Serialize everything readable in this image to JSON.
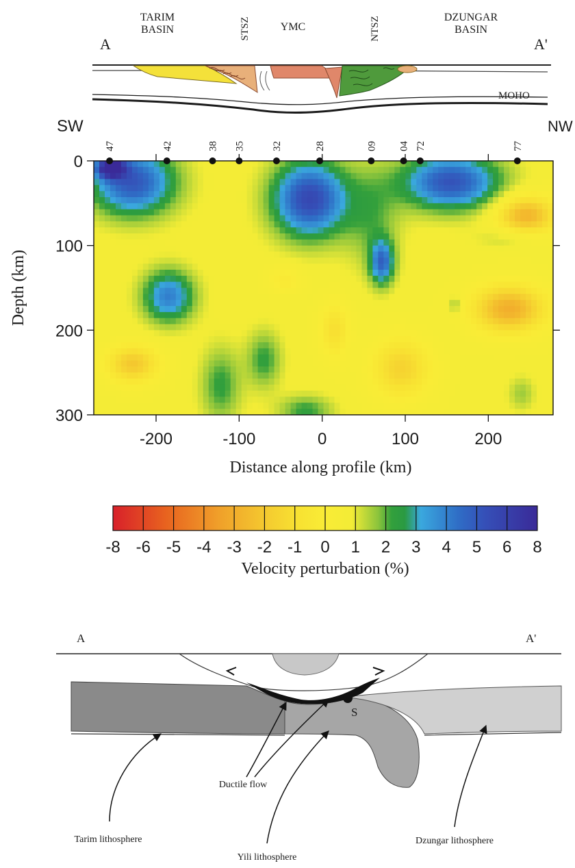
{
  "top_section": {
    "end_left": "A",
    "end_right": "A'",
    "units": [
      {
        "label_lines": [
          "TARIM",
          "BASIN"
        ]
      },
      {
        "label": "STSZ"
      },
      {
        "label": "YMC"
      },
      {
        "label": "NTSZ"
      },
      {
        "label_lines": [
          "DZUNGAR",
          "BASIN"
        ]
      }
    ],
    "moho_label": "MOHO",
    "colors": {
      "tarim": "#f4e13a",
      "ymc": "#e0876a",
      "dzungar": "#4f9a3c",
      "sedimentary": "#e8b07a"
    }
  },
  "tomogram": {
    "dir_left": "SW",
    "dir_right": "NW",
    "stations": [
      {
        "id": "47",
        "x": -256
      },
      {
        "id": "42",
        "x": -187
      },
      {
        "id": "38",
        "x": -132
      },
      {
        "id": "35",
        "x": -100
      },
      {
        "id": "32",
        "x": -55
      },
      {
        "id": "28",
        "x": -3
      },
      {
        "id": "09",
        "x": 59
      },
      {
        "id": "04",
        "x": 98
      },
      {
        "id": "72",
        "x": 118
      },
      {
        "id": "77",
        "x": 235
      }
    ],
    "xlabel": "Distance along profile (km)",
    "ylabel": "Depth (km)",
    "xlim": [
      -275,
      278
    ],
    "ylim": [
      0,
      300
    ],
    "xticks": [
      -200,
      -100,
      0,
      100,
      200
    ],
    "yticks": [
      0,
      100,
      200,
      300
    ],
    "background_anomaly": 0.8,
    "anomalies": [
      {
        "x": -228,
        "y": 25,
        "rx": 62,
        "ry": 48,
        "v": 5.8
      },
      {
        "x": -255,
        "y": 8,
        "rx": 22,
        "ry": 15,
        "v": 7.2
      },
      {
        "x": -15,
        "y": 45,
        "rx": 55,
        "ry": 55,
        "v": 6.4
      },
      {
        "x": 60,
        "y": 65,
        "rx": 42,
        "ry": 75,
        "v": 2.2
      },
      {
        "x": 155,
        "y": 25,
        "rx": 72,
        "ry": 40,
        "v": 5.9
      },
      {
        "x": -185,
        "y": 160,
        "rx": 38,
        "ry": 38,
        "v": 4.6
      },
      {
        "x": 72,
        "y": 120,
        "rx": 18,
        "ry": 32,
        "v": 5.0
      },
      {
        "x": -122,
        "y": 265,
        "rx": 30,
        "ry": 55,
        "v": 2.6
      },
      {
        "x": -70,
        "y": 235,
        "rx": 26,
        "ry": 42,
        "v": 2.6
      },
      {
        "x": -20,
        "y": 295,
        "rx": 40,
        "ry": 22,
        "v": 2.6
      },
      {
        "x": 160,
        "y": 170,
        "rx": 8,
        "ry": 14,
        "v": 2.2
      },
      {
        "x": 230,
        "y": 90,
        "rx": 50,
        "ry": 18,
        "v": 1.8
      },
      {
        "x": 240,
        "y": 275,
        "rx": 20,
        "ry": 25,
        "v": 1.8
      },
      {
        "x": -228,
        "y": 240,
        "rx": 40,
        "ry": 28,
        "v": -2.3
      },
      {
        "x": 245,
        "y": 65,
        "rx": 45,
        "ry": 30,
        "v": -3.2
      },
      {
        "x": 225,
        "y": 175,
        "rx": 55,
        "ry": 35,
        "v": -3.4
      },
      {
        "x": 95,
        "y": 245,
        "rx": 45,
        "ry": 45,
        "v": -1.8
      },
      {
        "x": 15,
        "y": 200,
        "rx": 22,
        "ry": 40,
        "v": -1.2
      },
      {
        "x": -45,
        "y": 140,
        "rx": 25,
        "ry": 20,
        "v": -0.4
      }
    ]
  },
  "colorbar": {
    "title": "Velocity perturbation (%)",
    "ticks": [
      -8,
      -6,
      -5,
      -4,
      -3,
      -2,
      -1,
      0,
      1,
      2,
      3,
      4,
      5,
      6,
      8
    ],
    "stops": [
      {
        "v": -8,
        "color": "#d8202a"
      },
      {
        "v": -6,
        "color": "#e8631f"
      },
      {
        "v": -4,
        "color": "#f0a02a"
      },
      {
        "v": -2,
        "color": "#f5cf30"
      },
      {
        "v": -1,
        "color": "#f8e232"
      },
      {
        "v": 0,
        "color": "#f9ec36"
      },
      {
        "v": 1,
        "color": "#f3ec36"
      },
      {
        "v": 2,
        "color": "#8bc43c"
      },
      {
        "v": 2.5,
        "color": "#33a03c"
      },
      {
        "v": 3,
        "color": "#2a9a42"
      },
      {
        "v": 3.6,
        "color": "#3aa8de"
      },
      {
        "v": 5,
        "color": "#2f6ec6"
      },
      {
        "v": 6,
        "color": "#3550b8"
      },
      {
        "v": 8,
        "color": "#3a2a98"
      }
    ]
  },
  "bottom_section": {
    "end_left": "A",
    "end_right": "A'",
    "marker_label": "S",
    "labels": {
      "ductile_flow": "Ductile flow",
      "tarim": "Tarim lithosphere",
      "yili": "Yili lithosphere",
      "dzungar": "Dzungar lithosphere"
    },
    "colors": {
      "tarim": "#8a8a8a",
      "yili": "#a6a6a6",
      "dzungar": "#d0d0d0",
      "crust_cap": "#c8c8c8",
      "ductile": "#111111"
    }
  }
}
